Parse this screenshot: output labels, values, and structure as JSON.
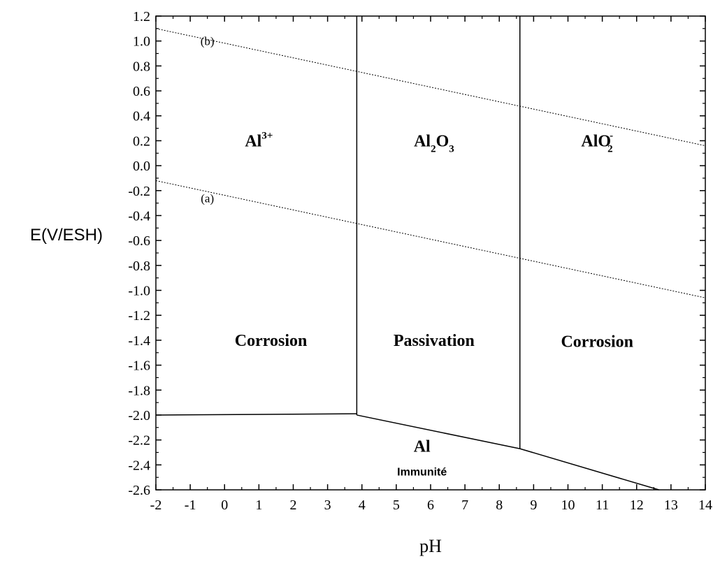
{
  "chart_data": {
    "type": "line",
    "title": "",
    "xlabel": "pH",
    "ylabel": "E(V/ESH)",
    "xlim": [
      -2,
      14
    ],
    "ylim": [
      -2.6,
      1.2
    ],
    "grid": false,
    "x_ticks": [
      "-2",
      "-1",
      "0",
      "1",
      "2",
      "3",
      "4",
      "5",
      "6",
      "7",
      "8",
      "9",
      "10",
      "11",
      "12",
      "13",
      "14"
    ],
    "y_ticks": [
      "1.2",
      "1.0",
      "0.8",
      "0.6",
      "0.4",
      "0.2",
      "0.0",
      "-0.2",
      "-0.4",
      "-0.6",
      "-0.8",
      "-1.0",
      "-1.2",
      "-1.4",
      "-1.6",
      "-1.8",
      "-2.0",
      "-2.2",
      "-2.4",
      "-2.6"
    ],
    "boundaries": [
      {
        "id": "al3-al2o3",
        "x": [
          3.85,
          3.85
        ],
        "y": [
          1.2,
          -2.0
        ]
      },
      {
        "id": "al2o3-alo2",
        "x": [
          8.6,
          8.6
        ],
        "y": [
          1.2,
          -2.27
        ]
      },
      {
        "id": "al-al3",
        "x": [
          -2.0,
          3.85
        ],
        "y": [
          -2.0,
          -1.99
        ]
      },
      {
        "id": "al-al2o3",
        "x": [
          3.85,
          8.6
        ],
        "y": [
          -2.0,
          -2.27
        ]
      },
      {
        "id": "al-alo2",
        "x": [
          8.6,
          12.65
        ],
        "y": [
          -2.27,
          -2.6
        ]
      }
    ],
    "water_lines": [
      {
        "label": "(b)",
        "x": [
          -2.0,
          14.0
        ],
        "y": [
          1.1,
          0.16
        ],
        "label_at": [
          -0.5,
          1.0
        ]
      },
      {
        "label": "(a)",
        "x": [
          -2.0,
          14.0
        ],
        "y": [
          -0.12,
          -1.06
        ],
        "label_at": [
          -0.5,
          -0.26
        ]
      }
    ],
    "regions": [
      {
        "species": "Al",
        "species_sup": "3+",
        "label": "Corrosion",
        "species_at": [
          1.0,
          0.2
        ],
        "label_at": [
          1.35,
          -1.4
        ]
      },
      {
        "species": "Al",
        "species_sub1": "2",
        "species_mid": "O",
        "species_sub2": "3",
        "label": "Passivation",
        "species_at": [
          6.1,
          0.2
        ],
        "label_at": [
          6.1,
          -1.4
        ]
      },
      {
        "species": "AlO",
        "species_sub": "2",
        "species_sup": "-",
        "label": "Corrosion",
        "species_at": [
          10.85,
          0.2
        ],
        "label_at": [
          10.85,
          -1.41
        ]
      },
      {
        "species": "Al",
        "label": "Immunité",
        "species_at": [
          5.75,
          -2.25
        ],
        "label_at": [
          5.75,
          -2.44
        ]
      }
    ]
  }
}
